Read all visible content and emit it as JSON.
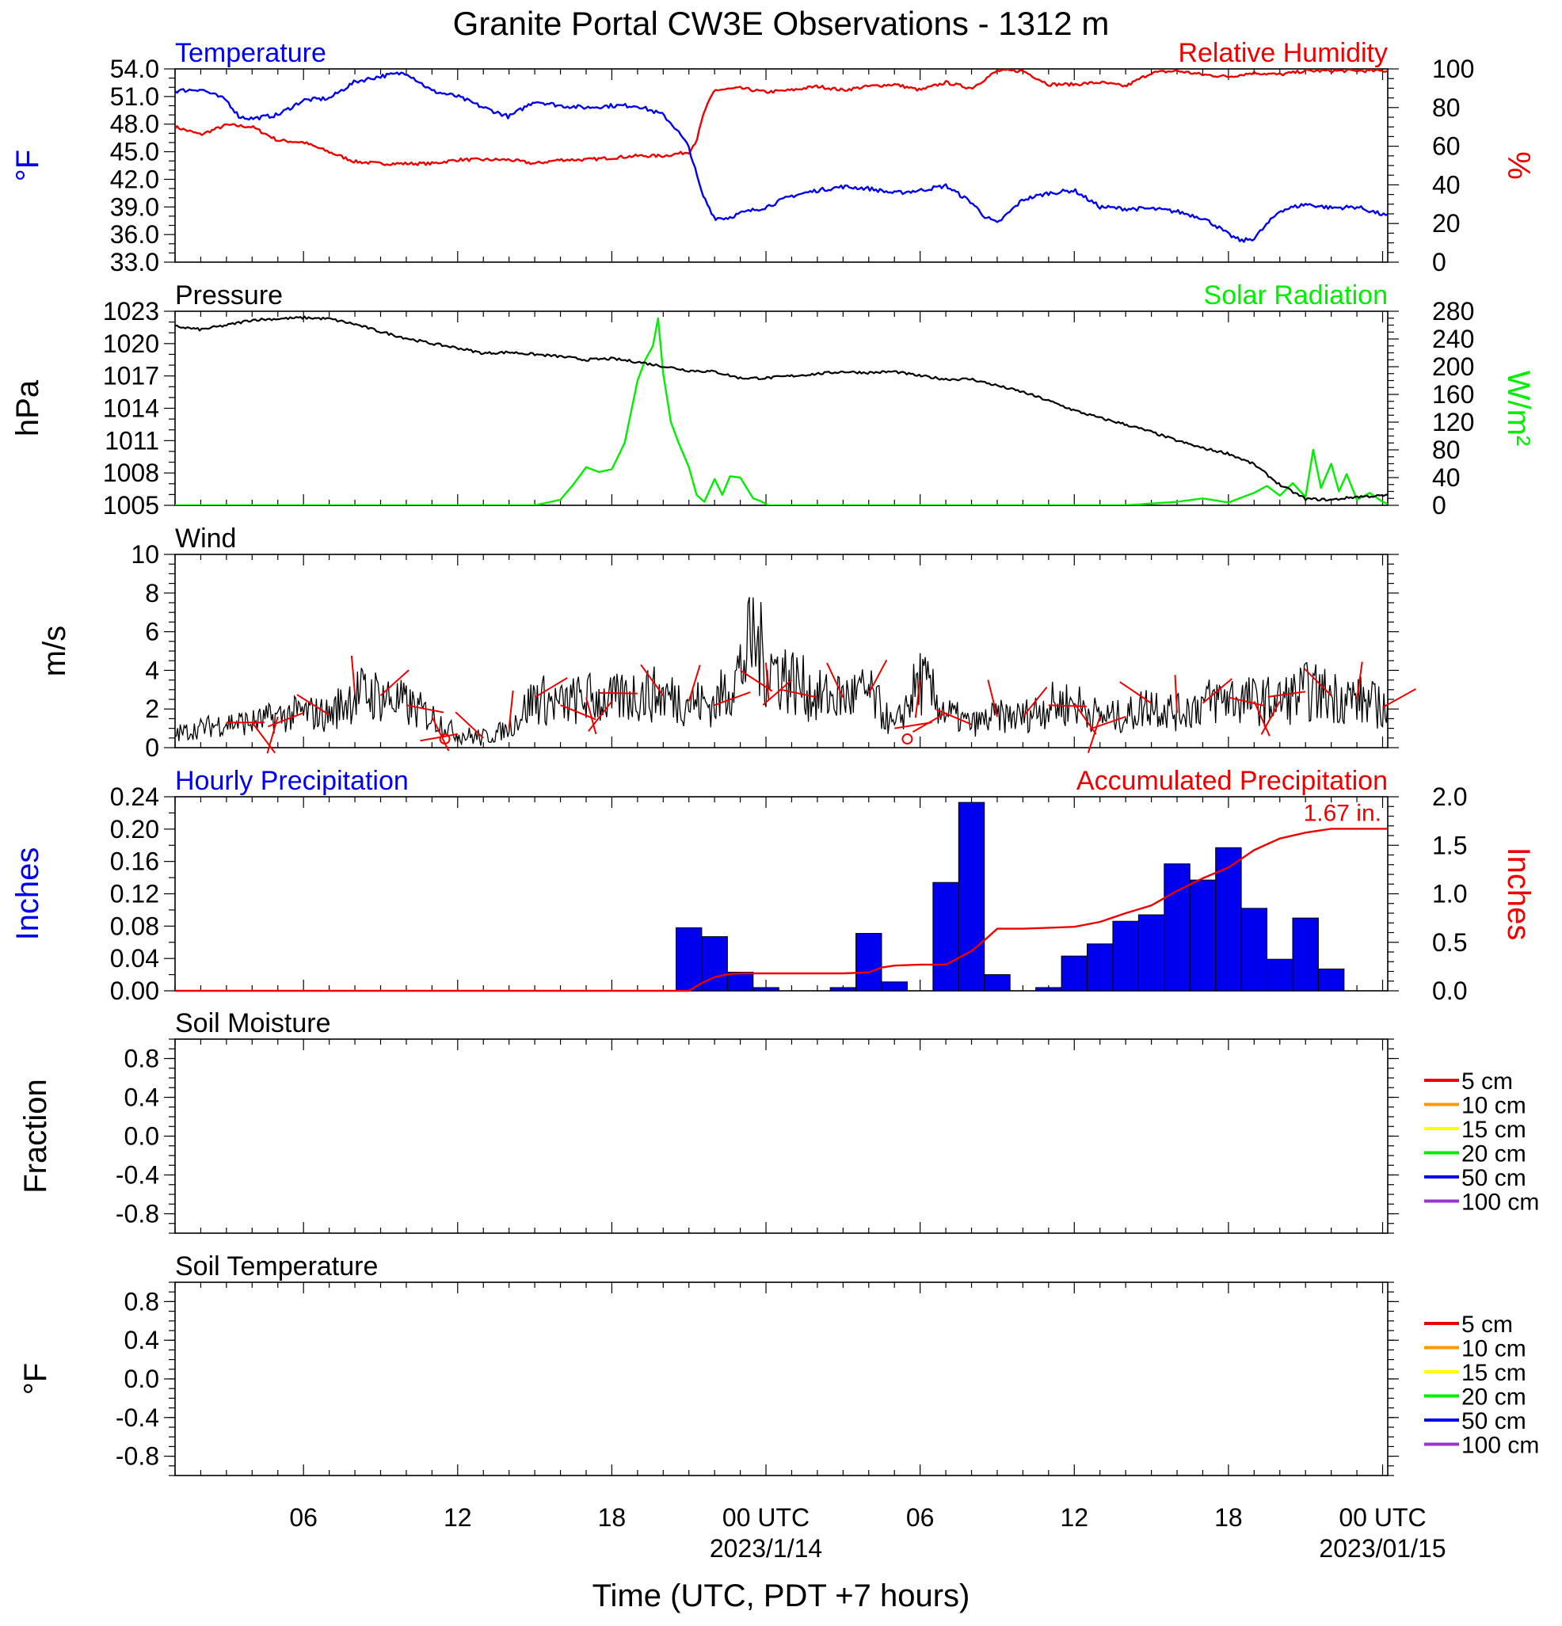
{
  "figure": {
    "title": "Granite Portal CW3E Observations - 1312 m",
    "xlabel": "Time (UTC, PDT +7 hours)",
    "x_ticks": [
      {
        "h": 6,
        "label": "06"
      },
      {
        "h": 12,
        "label": "12"
      },
      {
        "h": 18,
        "label": "18"
      },
      {
        "h": 24,
        "label": "00 UTC"
      },
      {
        "h": 30,
        "label": "06"
      },
      {
        "h": 36,
        "label": "12"
      },
      {
        "h": 42,
        "label": "18"
      },
      {
        "h": 48,
        "label": "00 UTC"
      }
    ],
    "date_labels": [
      {
        "h": 24,
        "label": "2023/1/14"
      },
      {
        "h": 48,
        "label": "2023/01/15"
      }
    ],
    "x_range_hours": [
      1,
      48.2
    ]
  },
  "colors": {
    "temperature": "#0000ee",
    "humidity": "#ee0000",
    "pressure": "#000000",
    "solar": "#00ee00",
    "wind_barb": "#ee0000",
    "precip_bar": "#0000ee",
    "accum": "#ee0000",
    "soil_5": "#ee0000",
    "soil_10": "#ff9900",
    "soil_15": "#ffff00",
    "soil_20": "#00ee00",
    "soil_50": "#0000ee",
    "soil_100": "#9933cc"
  },
  "chart_data": [
    {
      "id": "temp-rh",
      "type": "line",
      "left_title": "Temperature",
      "right_title": "Relative Humidity",
      "ylabel_left": "°F",
      "ylabel_right": "%",
      "ylim_left": [
        33,
        54
      ],
      "ylim_right": [
        0,
        100
      ],
      "yticks_left": [
        "54.0",
        "51.0",
        "48.0",
        "45.0",
        "42.0",
        "39.0",
        "36.0",
        "33.0"
      ],
      "yticks_right": [
        "100",
        "80",
        "60",
        "40",
        "20",
        "0"
      ],
      "series": [
        {
          "name": "Temperature",
          "axis": "left",
          "x": [
            1,
            2,
            3,
            3.5,
            4,
            5,
            6,
            7,
            8,
            9,
            10,
            11,
            12,
            13,
            14,
            15,
            16,
            17,
            18,
            19,
            20,
            20.5,
            21,
            21.5,
            22,
            22.5,
            23,
            24,
            25,
            26,
            27,
            28,
            29,
            30,
            31,
            32,
            32.5,
            33,
            34,
            35,
            36,
            37,
            38,
            39,
            40,
            41,
            41.5,
            42,
            42.5,
            43,
            44,
            45,
            46,
            47,
            48.2
          ],
          "y": [
            51.6,
            51.8,
            50.6,
            48.8,
            48.6,
            49.0,
            50.6,
            50.8,
            52.6,
            53.2,
            53.6,
            51.6,
            51.0,
            49.8,
            48.8,
            50.5,
            50.0,
            49.8,
            50.0,
            50.0,
            49.0,
            47.5,
            45.5,
            40.5,
            37.8,
            37.8,
            38.3,
            39.0,
            40.2,
            40.8,
            41.2,
            41.0,
            40.5,
            40.8,
            41.3,
            39.5,
            38.0,
            37.2,
            39.8,
            40.5,
            40.8,
            39.0,
            38.8,
            38.8,
            38.5,
            37.8,
            37.0,
            36.0,
            35.3,
            35.6,
            38.6,
            39.3,
            38.9,
            39.0,
            38.0
          ]
        },
        {
          "name": "Relative Humidity",
          "axis": "right",
          "x": [
            1,
            2,
            3,
            4,
            5,
            6,
            7,
            8,
            9,
            10,
            11,
            12,
            13,
            14,
            15,
            16,
            17,
            18,
            19,
            20,
            21,
            21.3,
            21.6,
            22,
            23,
            24,
            25,
            26,
            27,
            28,
            29,
            30,
            31,
            32,
            33,
            34,
            35,
            36,
            37,
            38,
            39,
            40,
            41,
            42,
            43,
            44,
            45,
            46,
            47,
            48.2
          ],
          "y": [
            70,
            66,
            71,
            70,
            63,
            62,
            57,
            52,
            51,
            51,
            51,
            53,
            53,
            53,
            51,
            53,
            53,
            54,
            55,
            55,
            57,
            63,
            78,
            89,
            90,
            88,
            89,
            91,
            89,
            91,
            92,
            89,
            93,
            90,
            99,
            99,
            92,
            92,
            93,
            91,
            98,
            99,
            97,
            96,
            98,
            97,
            99,
            99,
            99,
            99
          ]
        }
      ]
    },
    {
      "id": "pressure-solar",
      "type": "line",
      "left_title": "Pressure",
      "right_title": "Solar Radiation",
      "ylabel_left": "hPa",
      "ylabel_right": "W/m²",
      "ylim_left": [
        1005,
        1023
      ],
      "ylim_right": [
        0,
        280
      ],
      "yticks_left": [
        "1023",
        "1020",
        "1017",
        "1014",
        "1011",
        "1008",
        "1005"
      ],
      "yticks_right": [
        "280",
        "240",
        "200",
        "160",
        "120",
        "80",
        "40",
        "0"
      ],
      "series": [
        {
          "name": "Pressure",
          "axis": "left",
          "x": [
            1,
            2,
            3,
            4,
            5,
            6,
            7,
            8,
            9,
            10,
            11,
            12,
            13,
            14,
            15,
            16,
            17,
            18,
            19,
            20,
            21,
            22,
            23,
            24,
            25,
            26,
            27,
            28,
            29,
            30,
            31,
            32,
            33,
            34,
            35,
            36,
            37,
            38,
            39,
            40,
            41,
            42,
            43,
            44,
            45,
            46,
            47,
            48.2
          ],
          "y": [
            1021.6,
            1021.3,
            1021.7,
            1022.2,
            1022.3,
            1022.4,
            1022.3,
            1021.8,
            1021.1,
            1020.5,
            1020.0,
            1019.6,
            1019.1,
            1019.2,
            1019.0,
            1018.8,
            1018.5,
            1018.6,
            1018.3,
            1017.9,
            1017.5,
            1017.4,
            1016.8,
            1016.8,
            1017.0,
            1017.2,
            1017.4,
            1017.3,
            1017.4,
            1017.0,
            1016.7,
            1016.7,
            1016.1,
            1015.5,
            1014.7,
            1013.8,
            1013.1,
            1012.5,
            1011.8,
            1011.0,
            1010.3,
            1009.8,
            1008.8,
            1006.9,
            1005.6,
            1005.5,
            1005.8,
            1005.9
          ]
        },
        {
          "name": "Solar Radiation",
          "axis": "right",
          "x": [
            1,
            15,
            16,
            16.5,
            17,
            17.5,
            18,
            18.5,
            19,
            19.3,
            19.6,
            19.8,
            20,
            20.3,
            20.6,
            21,
            21.3,
            21.6,
            22,
            22.3,
            22.6,
            23,
            23.5,
            23.8,
            24.1,
            38,
            40,
            41,
            42,
            43,
            43.5,
            44,
            44.5,
            45,
            45.3,
            45.6,
            46,
            46.3,
            46.6,
            47,
            47.5,
            48,
            48.2
          ],
          "y": [
            0,
            0,
            8,
            30,
            55,
            48,
            52,
            90,
            180,
            210,
            230,
            270,
            190,
            120,
            90,
            55,
            15,
            5,
            38,
            15,
            42,
            40,
            10,
            6,
            0,
            0,
            5,
            10,
            4,
            18,
            28,
            14,
            32,
            12,
            80,
            25,
            60,
            20,
            45,
            8,
            18,
            5,
            2
          ]
        }
      ]
    },
    {
      "id": "wind",
      "type": "line",
      "left_title": "Wind",
      "ylabel_left": "m/s",
      "ylim_left": [
        0,
        10
      ],
      "yticks_left": [
        "10",
        "8",
        "6",
        "4",
        "2",
        "0"
      ],
      "series": [
        {
          "name": "Wind",
          "x": [
            1,
            2,
            3,
            4,
            5,
            6,
            7,
            8,
            9,
            10,
            11,
            12,
            13,
            14,
            15,
            16,
            17,
            18,
            19,
            20,
            21,
            22,
            23,
            23.5,
            24,
            25,
            26,
            27,
            28,
            29,
            30,
            31,
            32,
            33,
            34,
            35,
            36,
            37,
            38,
            39,
            40,
            41,
            42,
            43,
            44,
            45,
            46,
            47,
            48.2
          ],
          "y": [
            0.7,
            1.0,
            1.3,
            1.3,
            1.6,
            1.8,
            1.7,
            2.8,
            2.7,
            2.2,
            1.6,
            0.7,
            0.5,
            1.0,
            2.6,
            2.2,
            2.6,
            2.4,
            2.8,
            2.7,
            2.4,
            2.2,
            4.0,
            5.6,
            4.4,
            3.5,
            2.6,
            2.6,
            2.8,
            1.0,
            3.5,
            1.8,
            1.2,
            1.6,
            1.6,
            2.2,
            2.3,
            1.6,
            1.6,
            2.3,
            1.8,
            2.3,
            2.6,
            2.4,
            2.4,
            2.9,
            2.7,
            2.5,
            2.0
          ]
        }
      ],
      "barb_times": [
        3,
        4,
        5,
        6,
        7,
        8,
        9,
        10,
        11,
        11.5,
        12,
        13,
        14,
        15,
        16,
        17,
        18,
        19,
        20,
        21,
        22,
        23,
        24,
        25,
        26,
        27,
        28,
        29,
        29.5,
        30,
        31,
        32,
        33,
        34,
        35,
        36,
        37,
        38,
        39,
        40,
        41,
        42,
        43,
        44,
        45,
        46,
        47,
        48
      ]
    },
    {
      "id": "precip",
      "type": "bar",
      "left_title": "Hourly Precipitation",
      "right_title": "Accumulated Precipitation",
      "ylabel_left": "Inches",
      "ylabel_right": "Inches",
      "ylim_left": [
        0,
        0.24
      ],
      "ylim_right": [
        0,
        2.0
      ],
      "yticks_left": [
        "0.24",
        "0.20",
        "0.16",
        "0.12",
        "0.08",
        "0.04",
        "0.00"
      ],
      "yticks_right": [
        "2.0",
        "1.5",
        "1.0",
        "0.5",
        "0.0"
      ],
      "annotation": "1.67 in.",
      "hourly": {
        "hours": [
          21,
          22,
          23,
          24,
          27,
          28,
          29,
          31,
          32,
          33,
          35,
          36,
          37,
          38,
          39,
          40,
          41,
          42,
          43,
          44,
          45,
          46
        ],
        "values": [
          0.078,
          0.067,
          0.023,
          0.004,
          0.004,
          0.071,
          0.011,
          0.134,
          0.233,
          0.02,
          0.004,
          0.043,
          0.058,
          0.086,
          0.094,
          0.157,
          0.137,
          0.177,
          0.102,
          0.039,
          0.09,
          0.027
        ]
      },
      "accumulated": {
        "x": [
          1,
          21,
          21.5,
          22,
          22.5,
          23,
          24,
          25,
          26,
          27,
          28,
          28.5,
          29,
          30,
          31,
          32,
          32.5,
          33,
          34,
          35,
          36,
          37,
          38,
          39,
          40,
          41,
          42,
          43,
          43.5,
          44,
          45,
          46,
          47,
          48.2
        ],
        "y": [
          0,
          0,
          0.08,
          0.14,
          0.17,
          0.18,
          0.18,
          0.18,
          0.18,
          0.18,
          0.19,
          0.24,
          0.26,
          0.27,
          0.27,
          0.41,
          0.52,
          0.64,
          0.64,
          0.65,
          0.66,
          0.71,
          0.8,
          0.88,
          1.03,
          1.16,
          1.27,
          1.45,
          1.51,
          1.57,
          1.63,
          1.67,
          1.67,
          1.67
        ]
      }
    },
    {
      "id": "soil-moisture",
      "type": "line",
      "left_title": "Soil Moisture",
      "ylabel_left": "Fraction",
      "ylim_left": [
        -1,
        1
      ],
      "yticks_left": [
        "0.8",
        "0.4",
        "0.0",
        "-0.4",
        "-0.8"
      ],
      "legend": [
        "5 cm",
        "10 cm",
        "15 cm",
        "20 cm",
        "50 cm",
        "100 cm"
      ],
      "series": []
    },
    {
      "id": "soil-temperature",
      "type": "line",
      "left_title": "Soil Temperature",
      "ylabel_left": "°F",
      "ylim_left": [
        -1,
        1
      ],
      "yticks_left": [
        "0.8",
        "0.4",
        "0.0",
        "-0.4",
        "-0.8"
      ],
      "legend": [
        "5 cm",
        "10 cm",
        "15 cm",
        "20 cm",
        "50 cm",
        "100 cm"
      ],
      "series": []
    }
  ]
}
